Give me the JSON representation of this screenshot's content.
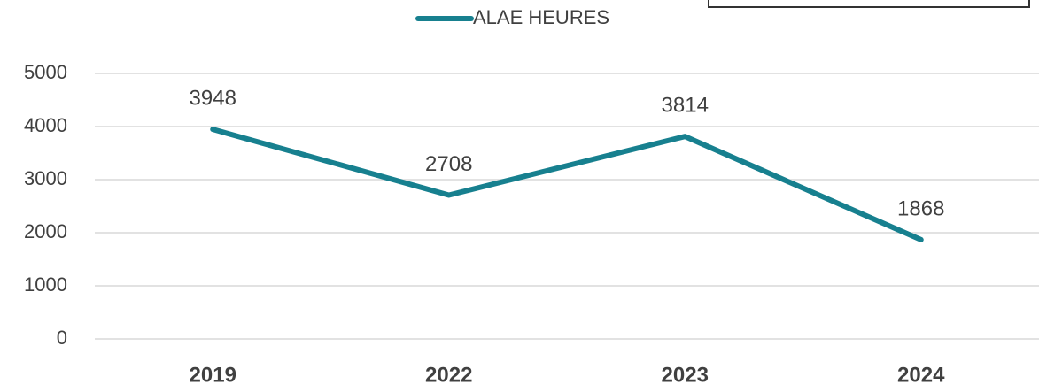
{
  "chart_data": {
    "type": "line",
    "categories": [
      "2019",
      "2022",
      "2023",
      "2024"
    ],
    "series": [
      {
        "name": "ALAE HEURES",
        "color": "#17808f",
        "values": [
          3948,
          2708,
          3814,
          1868
        ]
      }
    ],
    "ylim": [
      0,
      5000
    ],
    "yticks": [
      0,
      1000,
      2000,
      3000,
      4000,
      5000
    ],
    "grid": true
  }
}
